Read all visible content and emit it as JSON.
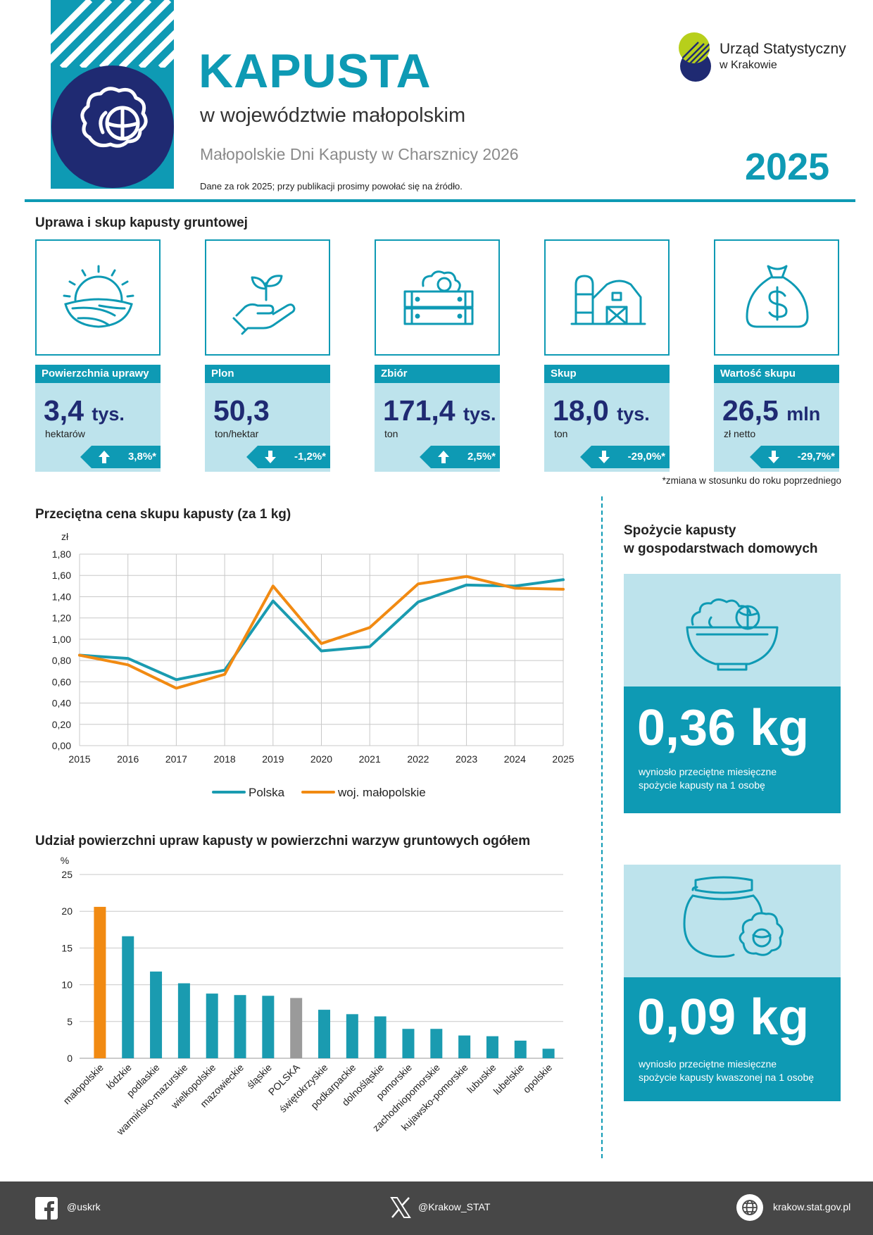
{
  "header": {
    "title": "KAPUSTA",
    "subtitle": "w województwie małopolskim",
    "event": "Małopolskie Dni Kapusty w Charsznicy 2026",
    "note": "Dane za rok 2025; przy publikacji prosimy powołać się na źródło.",
    "year": "2025",
    "logo_line1": "Urząd Statystyczny",
    "logo_line2": "w Krakowie"
  },
  "kpi_section": {
    "title": "Uprawa i skup kapusty gruntowej",
    "footnote": "*zmiana w stosunku do roku poprzedniego",
    "cards": [
      {
        "label": "Powierzchnia uprawy",
        "value": "3,4",
        "value_unit": "tys.",
        "unit": "hektarów",
        "change": "3,8%*",
        "direction": "up",
        "icon": "field-sun-icon"
      },
      {
        "label": "Plon",
        "value": "50,3",
        "value_unit": "",
        "unit": "ton/hektar",
        "change": "-1,2%*",
        "direction": "down",
        "icon": "hand-sprout-icon"
      },
      {
        "label": "Zbiór",
        "value": "171,4",
        "value_unit": "tys.",
        "unit": "ton",
        "change": "2,5%*",
        "direction": "up",
        "icon": "cabbage-crate-icon"
      },
      {
        "label": "Skup",
        "value": "18,0",
        "value_unit": "tys.",
        "unit": "ton",
        "change": "-29,0%*",
        "direction": "down",
        "icon": "barn-silo-icon"
      },
      {
        "label": "Wartość skupu",
        "value": "26,5",
        "value_unit": "mln",
        "unit": "zł netto",
        "change": "-29,7%*",
        "direction": "down",
        "icon": "money-bag-icon"
      }
    ]
  },
  "chart_data": [
    {
      "type": "line",
      "title": "Przeciętna cena skupu kapusty (za 1 kg)",
      "ylabel": "zł",
      "x": [
        2015,
        2016,
        2017,
        2018,
        2019,
        2020,
        2021,
        2022,
        2023,
        2024,
        2025
      ],
      "ylim": [
        0,
        1.8
      ],
      "yticks": [
        "0,00",
        "0,20",
        "0,40",
        "0,60",
        "0,80",
        "1,00",
        "1,20",
        "1,40",
        "1,60",
        "1,80"
      ],
      "grid": true,
      "legend": "bottom",
      "series": [
        {
          "name": "Polska",
          "color": "#1a9bb0",
          "values": [
            0.85,
            0.82,
            0.62,
            0.71,
            1.36,
            0.89,
            0.93,
            1.35,
            1.51,
            1.5,
            1.56
          ]
        },
        {
          "name": "woj. małopolskie",
          "color": "#f18a12",
          "values": [
            0.85,
            0.76,
            0.54,
            0.67,
            1.5,
            0.96,
            1.11,
            1.52,
            1.59,
            1.48,
            1.47
          ]
        }
      ]
    },
    {
      "type": "bar",
      "title": "Udział powierzchni upraw kapusty w powierzchni warzyw gruntowych ogółem",
      "ylabel": "%",
      "ylim": [
        0,
        25
      ],
      "yticks": [
        "0",
        "5",
        "10",
        "15",
        "20",
        "25"
      ],
      "grid": true,
      "categories": [
        "małopolskie",
        "łódzkie",
        "podlaskie",
        "warmińsko-mazurskie",
        "wielkopolskie",
        "mazowieckie",
        "śląskie",
        "POLSKA",
        "świętokrzyskie",
        "podkarpackie",
        "dolnośląskie",
        "pomorskie",
        "zachodniopomorskie",
        "kujawsko-pomorskie",
        "lubuskie",
        "lubelskie",
        "opolskie"
      ],
      "values": [
        20.6,
        16.6,
        11.8,
        10.2,
        8.8,
        8.6,
        8.5,
        8.2,
        6.6,
        6.0,
        5.7,
        4.0,
        4.0,
        3.1,
        3.0,
        2.4,
        1.3
      ],
      "colors": [
        "#f18a12",
        "#1a9bb0",
        "#1a9bb0",
        "#1a9bb0",
        "#1a9bb0",
        "#1a9bb0",
        "#1a9bb0",
        "#9a9a9a",
        "#1a9bb0",
        "#1a9bb0",
        "#1a9bb0",
        "#1a9bb0",
        "#1a9bb0",
        "#1a9bb0",
        "#1a9bb0",
        "#1a9bb0",
        "#1a9bb0"
      ]
    }
  ],
  "consumption": {
    "title_line1": "Spożycie kapusty",
    "title_line2": "w gospodarstwach domowych",
    "items": [
      {
        "value": "0,36 kg",
        "desc_line1": "wyniosło przeciętne miesięczne",
        "desc_line2": "spożycie kapusty na 1 osobę",
        "icon": "cabbage-bowl-icon"
      },
      {
        "value": "0,09 kg",
        "desc_line1": "wyniosło przeciętne miesięczne",
        "desc_line2": "spożycie kapusty kwaszonej na 1 osobę",
        "icon": "sauerkraut-jar-icon"
      }
    ]
  },
  "footer": {
    "facebook": "@uskrk",
    "x": "@Krakow_STAT",
    "website": "krakow.stat.gov.pl"
  },
  "colors": {
    "teal": "#0e9ab4",
    "navy": "#1f2a72",
    "light_teal": "#bde3ec",
    "orange": "#f18a12",
    "gray": "#9a9a9a",
    "footer": "#474747"
  }
}
